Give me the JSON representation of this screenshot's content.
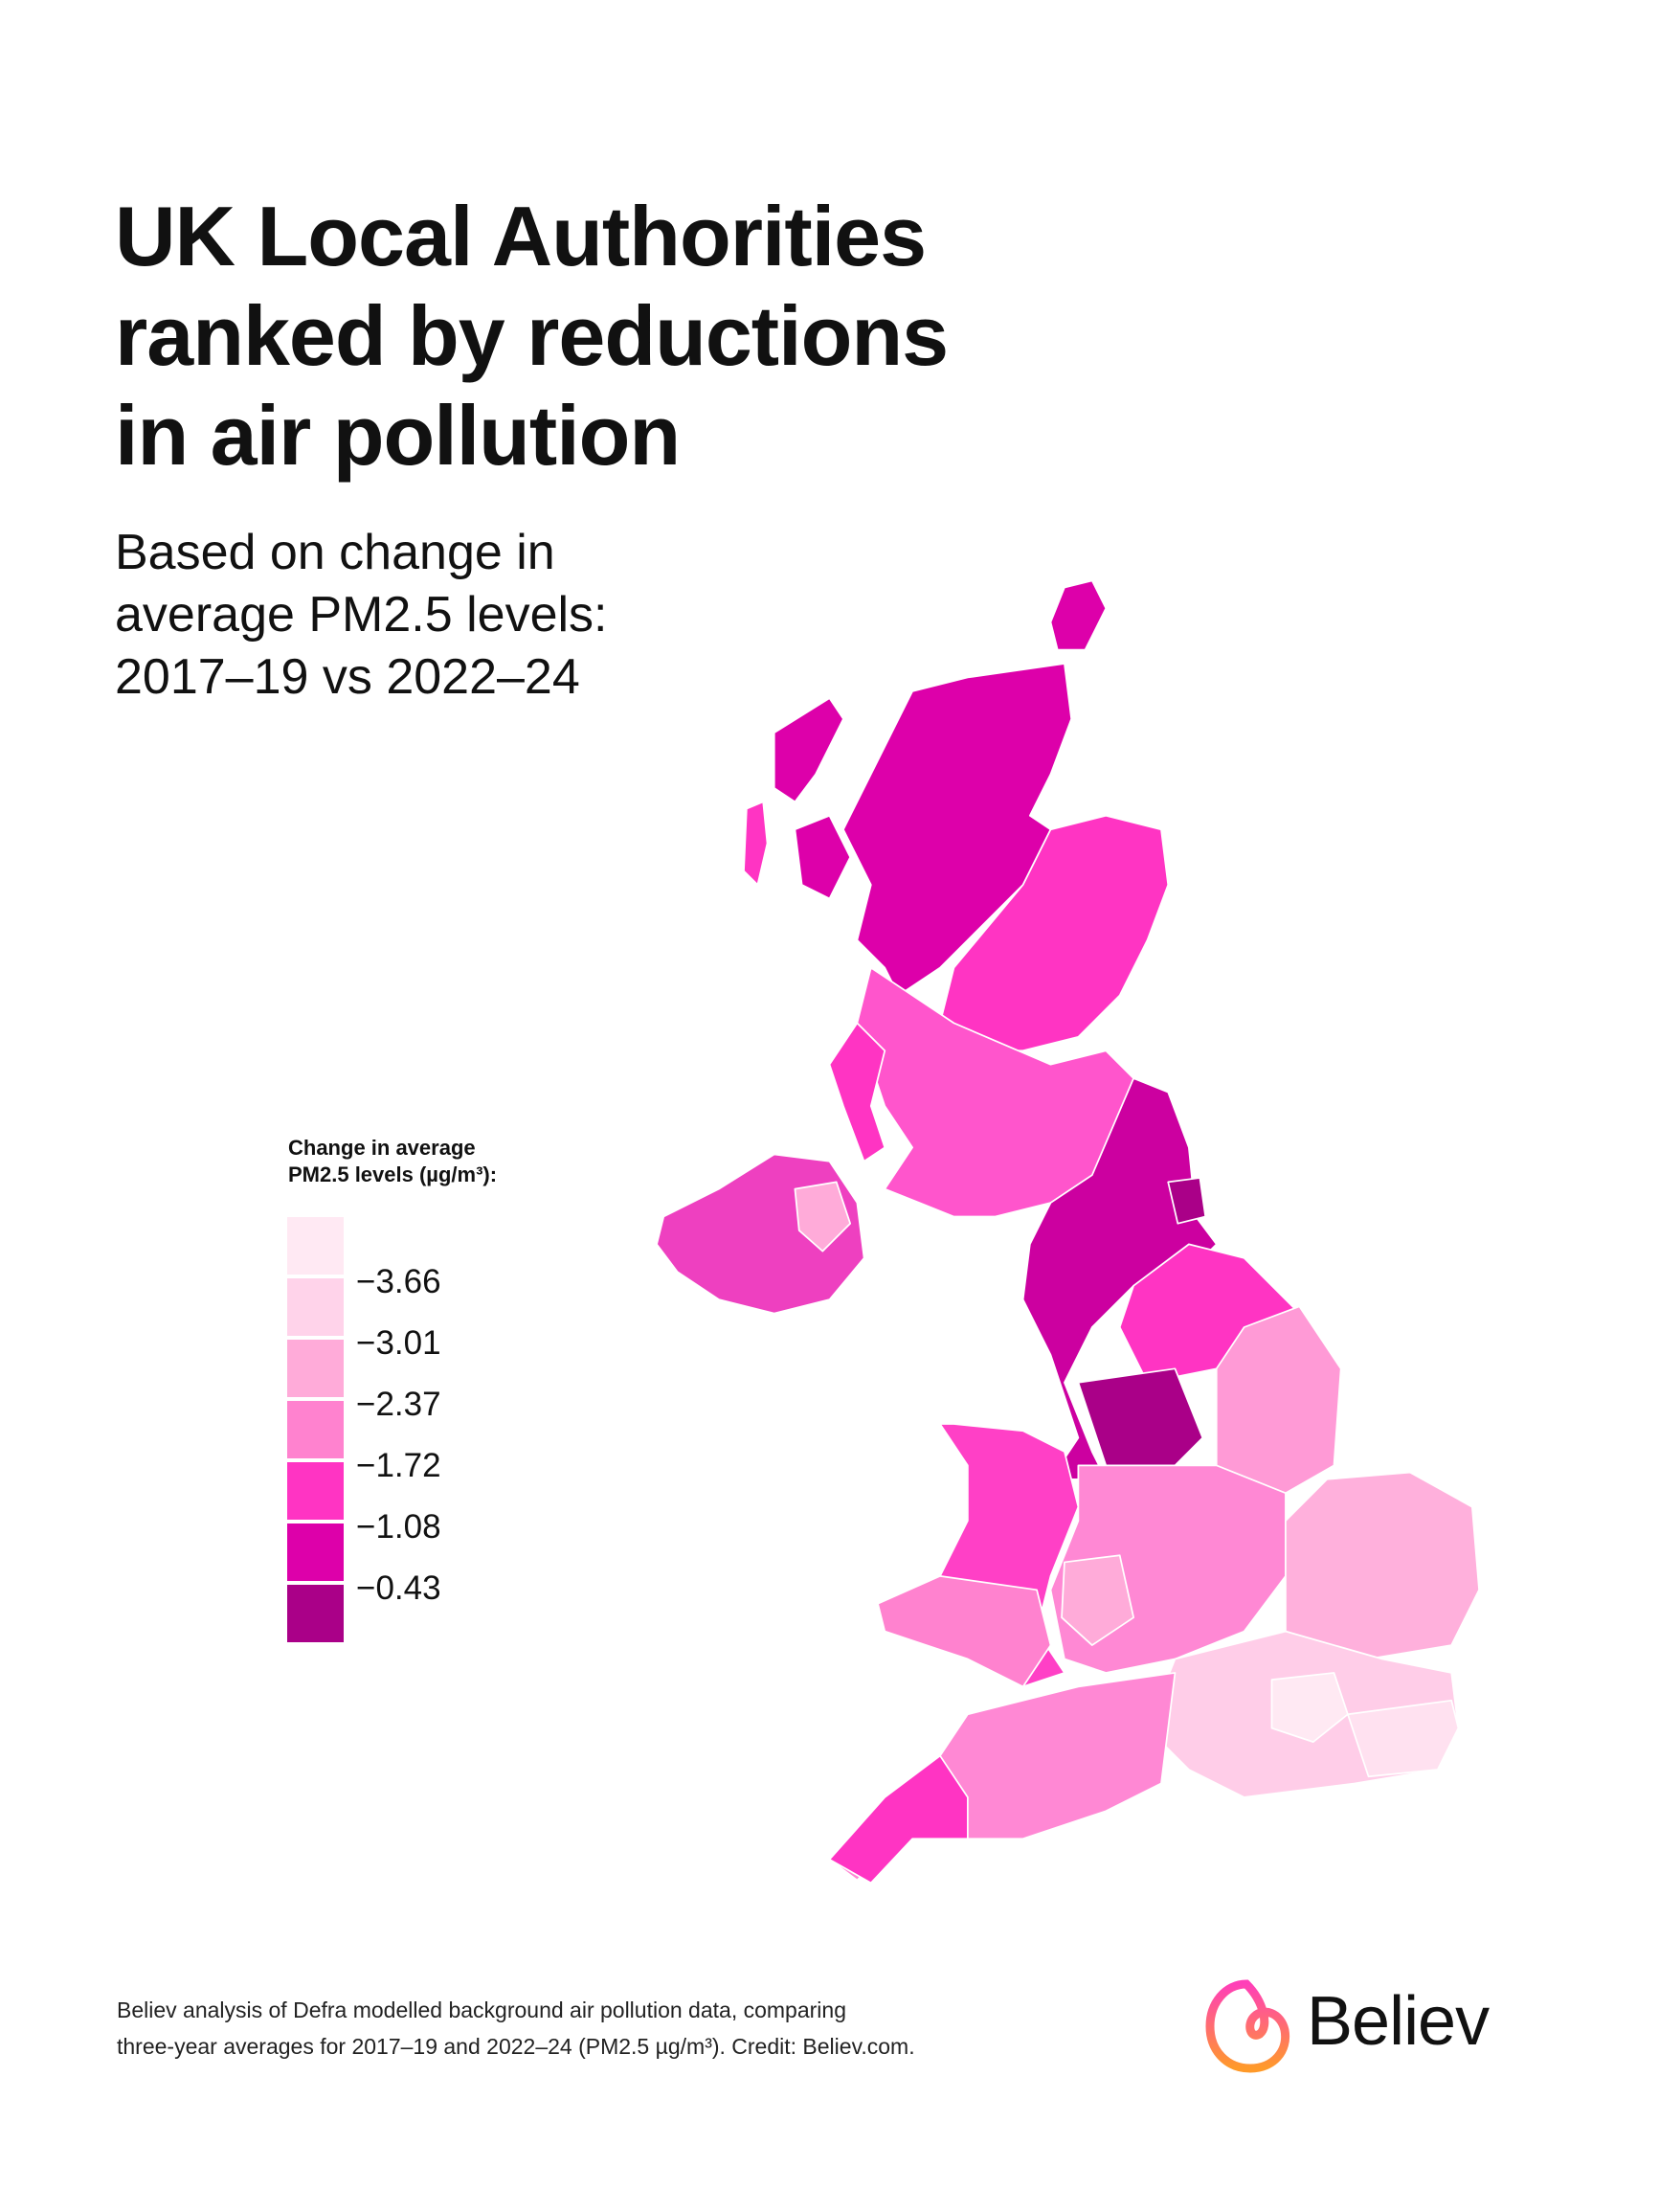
{
  "header": {
    "title_lines": [
      "UK Local Authorities",
      "ranked by reductions",
      "in air pollution"
    ],
    "subtitle_lines": [
      "Based on change in",
      "average PM2.5 levels:",
      "2017–19 vs 2022–24"
    ]
  },
  "legend": {
    "title_lines": [
      "Change in average",
      "PM2.5 levels (µg/m³):"
    ],
    "thresholds": [
      "−3.66",
      "−3.01",
      "−2.37",
      "−1.72",
      "−1.08",
      "−0.43"
    ],
    "colors": [
      "#ffe9f3",
      "#ffd3ea",
      "#ffabd9",
      "#ff82cf",
      "#ff34c3",
      "#dd00aa",
      "#aa0088"
    ]
  },
  "footer": {
    "lines": [
      "Believ analysis of Defra modelled background air pollution data, comparing",
      "three-year averages for 2017–19 and 2022–24 (PM2.5 µg/m³). Credit: Believ.com."
    ]
  },
  "logo": {
    "text": "Believ",
    "gradient": [
      "#ff3fb8",
      "#ff9a2a"
    ]
  }
}
